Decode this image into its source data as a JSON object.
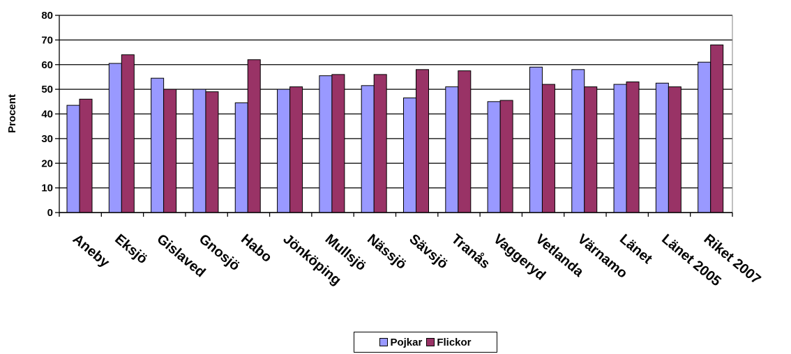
{
  "chart_data": {
    "type": "bar",
    "title": "",
    "xlabel": "",
    "ylabel": "Procent",
    "ylim": [
      0,
      80
    ],
    "yticks": [
      0,
      10,
      20,
      30,
      40,
      50,
      60,
      70,
      80
    ],
    "grid": "horizontal",
    "legend_position": "bottom",
    "categories": [
      "Aneby",
      "Eksjö",
      "Gislaved",
      "Gnosjö",
      "Habo",
      "Jönköping",
      "Mullsjö",
      "Nässjö",
      "Sävsjö",
      "Tranås",
      "Vaggeryd",
      "Vetlanda",
      "Värnamo",
      "Länet",
      "Länet 2005",
      "Riket 2007"
    ],
    "series": [
      {
        "name": "Pojkar",
        "color": "#9999ff",
        "values": [
          43.5,
          60.5,
          54.5,
          50,
          44.5,
          50,
          55.5,
          51.5,
          46.5,
          51,
          45,
          59,
          58,
          52,
          52.5,
          61
        ]
      },
      {
        "name": "Flickor",
        "color": "#993366",
        "values": [
          46,
          64,
          50,
          49,
          62,
          51,
          56,
          56,
          58,
          57.5,
          45.5,
          52,
          51,
          53,
          51,
          68
        ]
      }
    ]
  }
}
